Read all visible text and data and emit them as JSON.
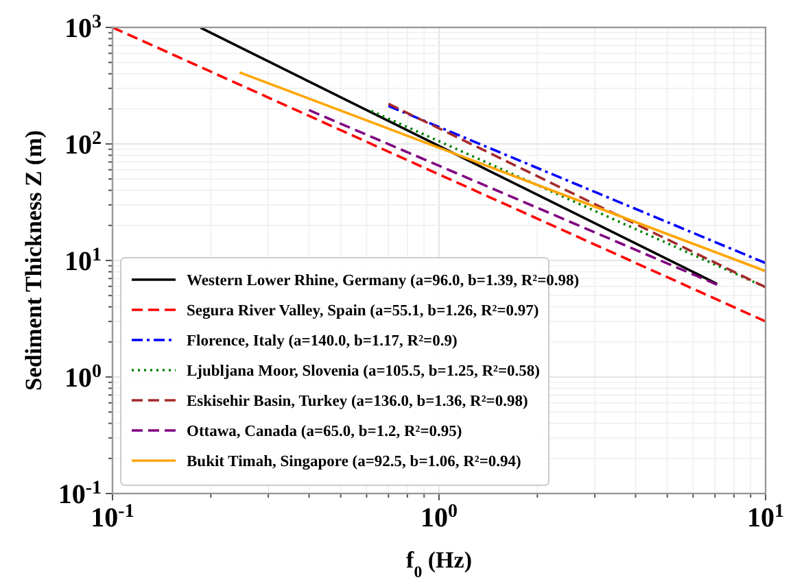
{
  "chart_data": {
    "type": "line",
    "xlabel": "f$_{0}$ (Hz)",
    "ylabel": "Sediment Thickness Z (m)",
    "log": "xy",
    "grid": true,
    "legend": "bottom left",
    "xlim": [
      0.1,
      10
    ],
    "ylim": [
      0.1,
      1000
    ],
    "xticks": [
      {
        "value": 0.1,
        "label": "10$^{-1}$"
      },
      {
        "value": 0.2,
        "label": null
      },
      {
        "value": 0.3,
        "label": null
      },
      {
        "value": 0.4,
        "label": null
      },
      {
        "value": 0.5,
        "label": null
      },
      {
        "value": 0.6,
        "label": null
      },
      {
        "value": 0.7,
        "label": null
      },
      {
        "value": 0.8,
        "label": null
      },
      {
        "value": 0.9,
        "label": null
      },
      {
        "value": 1,
        "label": "10$^{0}$"
      },
      {
        "value": 2,
        "label": null
      },
      {
        "value": 3,
        "label": null
      },
      {
        "value": 4,
        "label": null
      },
      {
        "value": 5,
        "label": null
      },
      {
        "value": 6,
        "label": null
      },
      {
        "value": 7,
        "label": null
      },
      {
        "value": 8,
        "label": null
      },
      {
        "value": 9,
        "label": null
      },
      {
        "value": 10,
        "label": "10$^{1}$"
      }
    ],
    "yticks": [
      {
        "value": 0.1,
        "label": "10$^{-1}$"
      },
      {
        "value": 0.2,
        "label": null
      },
      {
        "value": 0.3,
        "label": null
      },
      {
        "value": 0.4,
        "label": null
      },
      {
        "value": 0.5,
        "label": null
      },
      {
        "value": 0.6,
        "label": null
      },
      {
        "value": 0.7,
        "label": null
      },
      {
        "value": 0.8,
        "label": null
      },
      {
        "value": 0.9,
        "label": null
      },
      {
        "value": 1,
        "label": "10$^{0}$"
      },
      {
        "value": 2,
        "label": null
      },
      {
        "value": 3,
        "label": null
      },
      {
        "value": 4,
        "label": null
      },
      {
        "value": 5,
        "label": null
      },
      {
        "value": 6,
        "label": null
      },
      {
        "value": 7,
        "label": null
      },
      {
        "value": 8,
        "label": null
      },
      {
        "value": 9,
        "label": null
      },
      {
        "value": 10,
        "label": "10$^{1}$"
      },
      {
        "value": 20,
        "label": null
      },
      {
        "value": 30,
        "label": null
      },
      {
        "value": 40,
        "label": null
      },
      {
        "value": 50,
        "label": null
      },
      {
        "value": 60,
        "label": null
      },
      {
        "value": 70,
        "label": null
      },
      {
        "value": 80,
        "label": null
      },
      {
        "value": 90,
        "label": null
      },
      {
        "value": 100,
        "label": "10$^{2}$"
      },
      {
        "value": 200,
        "label": null
      },
      {
        "value": 300,
        "label": null
      },
      {
        "value": 400,
        "label": null
      },
      {
        "value": 500,
        "label": null
      },
      {
        "value": 600,
        "label": null
      },
      {
        "value": 700,
        "label": null
      },
      {
        "value": 800,
        "label": null
      },
      {
        "value": 900,
        "label": null
      },
      {
        "value": 1000,
        "label": "10$^{3}$"
      }
    ],
    "series": [
      {
        "name": "Western Lower Rhine, Germany (a=96.0, b=1.39, R²=0.98)",
        "color": "#000000",
        "line_style": "solid",
        "x": [
          0.186,
          7.1
        ],
        "values": [
          995,
          6.3
        ]
      },
      {
        "name": "Segura River Valley, Spain (a=55.1, b=1.26, R²=0.97)",
        "color": "#ff0000",
        "line_style": "dashed",
        "x": [
          0.1,
          10
        ],
        "values": [
          1000,
          3.0
        ]
      },
      {
        "name": "Florence, Italy (a=140.0, b=1.17, R²=0.9)",
        "color": "#0000ff",
        "line_style": "dashdot",
        "x": [
          0.7,
          10
        ],
        "values": [
          212,
          9.5
        ]
      },
      {
        "name": "Ljubljana Moor, Slovenia (a=105.5, b=1.25, R²=0.58)",
        "color": "#008000",
        "line_style": "dotted",
        "x": [
          0.62,
          10
        ],
        "values": [
          192,
          5.9
        ]
      },
      {
        "name": "Eskisehir Basin, Turkey (a=136.0, b=1.36, R²=0.98)",
        "color": "#a52a2a",
        "line_style": "dashed",
        "x": [
          0.7,
          10
        ],
        "values": [
          221,
          5.9
        ]
      },
      {
        "name": "Ottawa, Canada (a=65.0, b=1.2, R²=0.95)",
        "color": "#800080",
        "line_style": "dashed",
        "x": [
          0.4,
          7.1
        ],
        "values": [
          195,
          6.2
        ]
      },
      {
        "name": "Bukit Timah, Singapore (a=92.5, b=1.06, R²=0.94)",
        "color": "#ffa500",
        "line_style": "solid",
        "x": [
          0.245,
          10
        ],
        "values": [
          411,
          8.1
        ]
      }
    ]
  }
}
